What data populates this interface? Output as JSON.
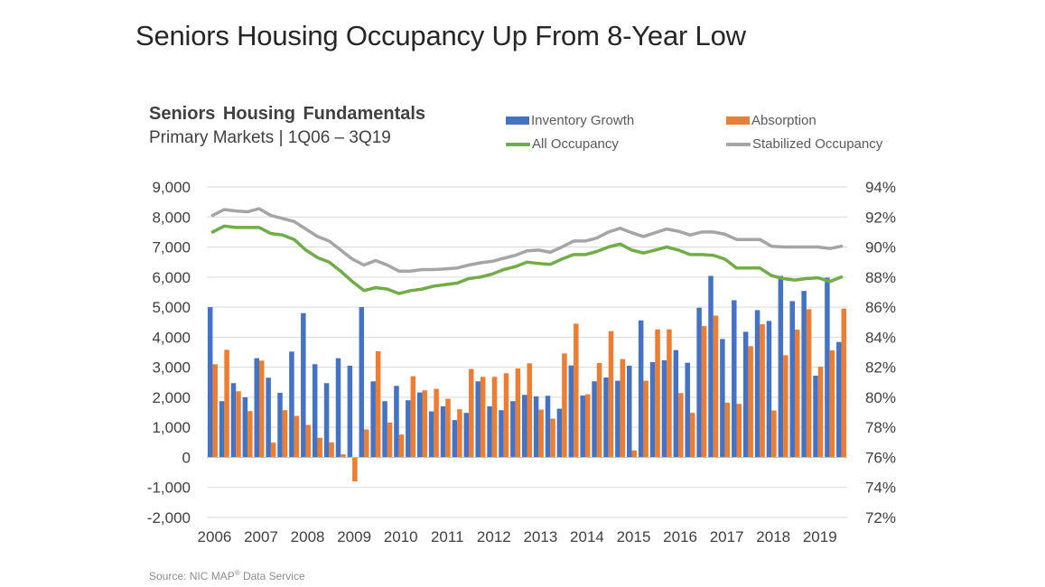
{
  "slide": {
    "title": "Seniors Housing Occupancy Up From 8-Year Low",
    "source_prefix": "Source: NIC MAP",
    "source_mark": "®",
    "source_suffix": " Data Service"
  },
  "chart_data": {
    "type": "bar",
    "title": "Seniors Housing Fundamentals",
    "subtitle": "Primary Markets | 1Q06 – 3Q19",
    "xlabel": "",
    "ylabel": "",
    "legend_placement": "top-right",
    "grid": true,
    "y_left": {
      "lim": [
        -2000,
        9000
      ],
      "ticks": [
        -2000,
        -1000,
        0,
        1000,
        2000,
        3000,
        4000,
        5000,
        6000,
        7000,
        8000,
        9000
      ],
      "tick_labels": [
        "-2,000",
        "-1,000",
        "0",
        "1,000",
        "2,000",
        "3,000",
        "4,000",
        "5,000",
        "6,000",
        "7,000",
        "8,000",
        "9,000"
      ]
    },
    "y_right": {
      "lim": [
        72,
        94
      ],
      "ticks": [
        72,
        74,
        76,
        78,
        80,
        82,
        84,
        86,
        88,
        90,
        92,
        94
      ],
      "tick_labels": [
        "72%",
        "74%",
        "76%",
        "78%",
        "80%",
        "82%",
        "84%",
        "86%",
        "88%",
        "90%",
        "92%",
        "94%"
      ]
    },
    "x_tick_labels": [
      "2006",
      "2007",
      "2008",
      "2009",
      "2010",
      "2011",
      "2012",
      "2013",
      "2014",
      "2015",
      "2016",
      "2017",
      "2018",
      "2019"
    ],
    "periods_per_year": 4,
    "num_periods": 55,
    "series": [
      {
        "name": "Inventory Growth",
        "kind": "bar",
        "axis": "left",
        "color": "#4472C4",
        "values": [
          5000,
          1870,
          2470,
          2000,
          3300,
          2650,
          2150,
          3520,
          4800,
          3100,
          2470,
          3300,
          3050,
          5000,
          2530,
          1870,
          2380,
          1900,
          2160,
          1530,
          1700,
          1240,
          1480,
          2530,
          1700,
          1570,
          1870,
          2080,
          2030,
          2050,
          1620,
          3060,
          2060,
          2530,
          2660,
          2550,
          3050,
          4560,
          3170,
          3230,
          3570,
          3150,
          4980,
          6040,
          3940,
          5230,
          4180,
          4900,
          4540,
          6040,
          5200,
          5540,
          2720,
          5980,
          3840
        ]
      },
      {
        "name": "Absorption",
        "kind": "bar",
        "axis": "left",
        "color": "#ED7D31",
        "values": [
          3100,
          3580,
          2200,
          1540,
          3220,
          490,
          1570,
          1380,
          1080,
          650,
          500,
          100,
          -800,
          930,
          3530,
          1160,
          760,
          2700,
          2230,
          2280,
          1950,
          1600,
          2940,
          2680,
          2680,
          2800,
          2960,
          3130,
          1590,
          1290,
          3460,
          4450,
          2100,
          3140,
          4200,
          3270,
          230,
          2550,
          4260,
          4260,
          2140,
          1480,
          4370,
          4720,
          1820,
          1780,
          3700,
          4430,
          1560,
          3400,
          4250,
          4930,
          3020,
          3560,
          4950
        ]
      },
      {
        "name": "All Occupancy",
        "kind": "line",
        "axis": "right",
        "color": "#70AD47",
        "values": [
          91.0,
          91.4,
          91.3,
          91.3,
          91.3,
          90.9,
          90.8,
          90.5,
          89.8,
          89.3,
          89.0,
          88.4,
          87.7,
          87.1,
          87.3,
          87.2,
          86.9,
          87.1,
          87.2,
          87.4,
          87.5,
          87.6,
          87.9,
          88.0,
          88.2,
          88.5,
          88.7,
          89.0,
          88.9,
          88.85,
          89.2,
          89.5,
          89.5,
          89.7,
          90.0,
          90.2,
          89.8,
          89.6,
          89.8,
          90.0,
          89.8,
          89.5,
          89.5,
          89.45,
          89.2,
          88.6,
          88.6,
          88.6,
          88.1,
          87.9,
          87.8,
          87.9,
          87.95,
          87.7,
          88.0
        ]
      },
      {
        "name": "Stabilized Occupancy",
        "kind": "line",
        "axis": "right",
        "color": "#A5A5A5",
        "values": [
          92.1,
          92.5,
          92.4,
          92.35,
          92.55,
          92.1,
          91.9,
          91.7,
          91.2,
          90.7,
          90.4,
          89.8,
          89.2,
          88.8,
          89.1,
          88.8,
          88.4,
          88.4,
          88.5,
          88.5,
          88.55,
          88.6,
          88.8,
          88.95,
          89.05,
          89.25,
          89.45,
          89.75,
          89.8,
          89.65,
          90.0,
          90.4,
          90.4,
          90.6,
          91.0,
          91.25,
          90.95,
          90.7,
          90.95,
          91.2,
          91.05,
          90.8,
          91.0,
          91.0,
          90.85,
          90.5,
          90.5,
          90.5,
          90.05,
          90.0,
          90.0,
          90.0,
          90.0,
          89.9,
          90.05
        ]
      }
    ]
  }
}
